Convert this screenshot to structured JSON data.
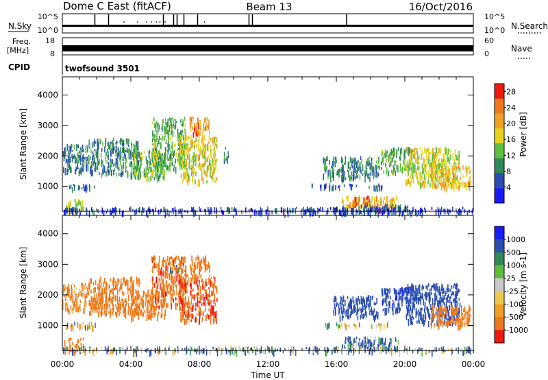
{
  "header": {
    "radar_title": "Dome C East (fitACF)",
    "beam": "Beam 13",
    "date": "16/Oct/2016"
  },
  "top_panels": {
    "nsky": {
      "label": "N.Sky",
      "y_top": "10^5",
      "y_bottom": "10^0",
      "right_label": "N.Search",
      "right_top": "10^5",
      "right_bottom": "10^0",
      "spike_hours": [
        1.9,
        2.7,
        5.9,
        6.5,
        6.7,
        7.1,
        7.9,
        10.9,
        11.1,
        16.6
      ],
      "dot_hours": [
        3.6,
        4.4,
        4.9,
        5.2,
        5.5,
        5.7,
        6.0,
        8.3
      ]
    },
    "freq": {
      "label_line1": "Freq.",
      "label_line2": "[MHz]",
      "y_top": "18",
      "y_bottom": "8",
      "right_label": "Nave",
      "right_top": "60",
      "right_bottom": "0"
    },
    "cpid": {
      "label": "CPID",
      "value": "twofsound 3501"
    }
  },
  "chart_data": [
    {
      "type": "heatmap",
      "quantity": "power",
      "ylabel": "Slant Range [km]",
      "xlabel": "Time UT",
      "x_unit": "hours UT",
      "xlim": [
        0,
        24
      ],
      "ylim": [
        180,
        4600
      ],
      "y_ticks": [
        1000,
        2000,
        3000,
        4000
      ],
      "x_ticks": [
        "00:00",
        "04:00",
        "08:00",
        "12:00",
        "16:00",
        "20:00",
        "00:00"
      ],
      "colorbar": {
        "label": "Power [dB]",
        "ticks": [
          4,
          8,
          12,
          16,
          20,
          24,
          28
        ],
        "range": [
          0,
          30
        ],
        "colors": [
          "#1a1aff",
          "#2a4fb0",
          "#2f8a5a",
          "#5cbf3f",
          "#e6d21c",
          "#f0a020",
          "#f07818",
          "#ee1a10"
        ]
      },
      "regions": [
        {
          "t": [
            0.2,
            1.9
          ],
          "r": [
            950,
            1100
          ],
          "level": 6
        },
        {
          "t": [
            0.0,
            1.5
          ],
          "r": [
            1500,
            2400
          ],
          "level": 8
        },
        {
          "t": [
            0.1,
            1.2
          ],
          "r": [
            200,
            600
          ],
          "level": 14
        },
        {
          "t": [
            1.5,
            4.5
          ],
          "r": [
            1400,
            2600
          ],
          "level": 9
        },
        {
          "t": [
            4.0,
            6.0
          ],
          "r": [
            1300,
            2200
          ],
          "level": 13
        },
        {
          "t": [
            5.2,
            7.2
          ],
          "r": [
            1600,
            3300
          ],
          "level": 12
        },
        {
          "t": [
            6.8,
            9.0
          ],
          "r": [
            1200,
            2700
          ],
          "level": 17
        },
        {
          "t": [
            7.4,
            8.6
          ],
          "r": [
            2800,
            3300
          ],
          "level": 20
        },
        {
          "t": [
            7.6,
            8.0
          ],
          "r": [
            2700,
            3100
          ],
          "level": 27
        },
        {
          "t": [
            9.4,
            9.7
          ],
          "r": [
            1900,
            2300
          ],
          "level": 10
        },
        {
          "t": [
            14.5,
            17.2
          ],
          "r": [
            1000,
            1100
          ],
          "level": 5
        },
        {
          "t": [
            17.8,
            18.7
          ],
          "r": [
            1000,
            1100
          ],
          "level": 6
        },
        {
          "t": [
            15.2,
            18.5
          ],
          "r": [
            1300,
            2000
          ],
          "level": 9
        },
        {
          "t": [
            16.3,
            19.5
          ],
          "r": [
            350,
            700
          ],
          "level": 20
        },
        {
          "t": [
            17.0,
            17.9
          ],
          "r": [
            450,
            700
          ],
          "level": 27
        },
        {
          "t": [
            18.3,
            19.2
          ],
          "r": [
            200,
            450
          ],
          "level": 29
        },
        {
          "t": [
            15.8,
            20.2
          ],
          "r": [
            180,
            420
          ],
          "level": 7
        },
        {
          "t": [
            18.6,
            20.5
          ],
          "r": [
            1500,
            2300
          ],
          "level": 12
        },
        {
          "t": [
            20.0,
            23.2
          ],
          "r": [
            1100,
            2300
          ],
          "level": 16
        },
        {
          "t": [
            21.5,
            23.8
          ],
          "r": [
            1000,
            1700
          ],
          "level": 19
        },
        {
          "t": [
            0.0,
            24.0
          ],
          "r": [
            180,
            330
          ],
          "level": 4
        }
      ]
    },
    {
      "type": "heatmap",
      "quantity": "velocity",
      "ylabel": "Slant Range [km]",
      "xlabel": "Time UT",
      "x_unit": "hours UT",
      "xlim": [
        0,
        24
      ],
      "ylim": [
        180,
        4600
      ],
      "y_ticks": [
        1000,
        2000,
        3000,
        4000
      ],
      "x_ticks": [
        "00:00",
        "04:00",
        "08:00",
        "12:00",
        "16:00",
        "20:00",
        "00:00"
      ],
      "colorbar": {
        "label": "Velocity [m s-1]",
        "ticks": [
          "1000",
          "500",
          "100",
          "25",
          "-25",
          "-100",
          "-500",
          "-1000"
        ],
        "range": [
          -1000,
          1000
        ],
        "colors": [
          "#ee1a10",
          "#f07818",
          "#f0a020",
          "#f0c850",
          "#c8c8c8",
          "#5cbf3f",
          "#2f8a5a",
          "#2a4fb0",
          "#1a1aff"
        ]
      },
      "regions": [
        {
          "t": [
            0.2,
            1.9
          ],
          "r": [
            950,
            1150
          ],
          "level": 0
        },
        {
          "t": [
            0.0,
            1.5
          ],
          "r": [
            1500,
            2400
          ],
          "level": -150
        },
        {
          "t": [
            0.1,
            1.2
          ],
          "r": [
            200,
            600
          ],
          "level": -200
        },
        {
          "t": [
            1.5,
            4.5
          ],
          "r": [
            1400,
            2600
          ],
          "level": -250
        },
        {
          "t": [
            4.0,
            6.0
          ],
          "r": [
            1300,
            2200
          ],
          "level": -350
        },
        {
          "t": [
            5.2,
            7.2
          ],
          "r": [
            1600,
            3300
          ],
          "level": -400
        },
        {
          "t": [
            6.8,
            9.0
          ],
          "r": [
            1200,
            2700
          ],
          "level": -450
        },
        {
          "t": [
            7.4,
            8.6
          ],
          "r": [
            2800,
            3300
          ],
          "level": -300
        },
        {
          "t": [
            6.0,
            6.8
          ],
          "r": [
            2700,
            3000
          ],
          "level": 0
        },
        {
          "t": [
            15.2,
            17.5
          ],
          "r": [
            1000,
            1100
          ],
          "level": 0
        },
        {
          "t": [
            18.0,
            19.0
          ],
          "r": [
            1000,
            1100
          ],
          "level": 0
        },
        {
          "t": [
            15.8,
            18.4
          ],
          "r": [
            1300,
            2000
          ],
          "level": 300
        },
        {
          "t": [
            16.3,
            19.6
          ],
          "r": [
            250,
            650
          ],
          "level": 120
        },
        {
          "t": [
            18.6,
            20.5
          ],
          "r": [
            1500,
            2300
          ],
          "level": 400
        },
        {
          "t": [
            20.0,
            23.2
          ],
          "r": [
            1100,
            2400
          ],
          "level": 250
        },
        {
          "t": [
            21.5,
            23.8
          ],
          "r": [
            1000,
            1700
          ],
          "level": -300
        },
        {
          "t": [
            0.0,
            24.0
          ],
          "r": [
            180,
            330
          ],
          "level": 80
        }
      ]
    }
  ]
}
